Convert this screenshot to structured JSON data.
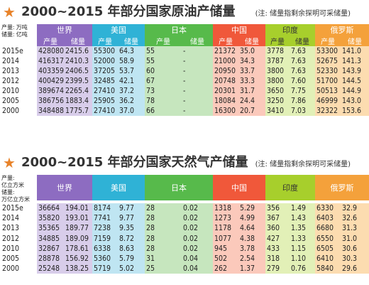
{
  "oil": {
    "title": "2000~2015 年部分国家原油产储量",
    "note": "(注: 储量指剩余探明可采储量)",
    "unit_line1": "产量: 万吨",
    "unit_line2": "储量: 亿吨",
    "countries": [
      "世界",
      "美国",
      "日本",
      "中国",
      "印度",
      "俄罗斯"
    ],
    "sub_prod": "产量",
    "sub_res": "储量",
    "rows": [
      [
        "2015e",
        "428080",
        "2415.6",
        "55300",
        "64.3",
        "55",
        "-",
        "21372",
        "35.0",
        "3778",
        "7.63",
        "53300",
        "141.0"
      ],
      [
        "2014",
        "416317",
        "2410.3",
        "52000",
        "58.9",
        "55",
        "-",
        "21000",
        "34.3",
        "3787",
        "7.63",
        "52675",
        "141.3"
      ],
      [
        "2013",
        "403359",
        "2406.5",
        "37205",
        "53.7",
        "60",
        "-",
        "20950",
        "33.7",
        "3800",
        "7.63",
        "52330",
        "143.9"
      ],
      [
        "2012",
        "400429",
        "2399.5",
        "32485",
        "42.1",
        "67",
        "-",
        "20748",
        "33.3",
        "3800",
        "7.60",
        "51700",
        "144.5"
      ],
      [
        "2010",
        "389674",
        "2265.4",
        "27410",
        "37.2",
        "73",
        "-",
        "20301",
        "31.7",
        "3650",
        "7.75",
        "50513",
        "144.9"
      ],
      [
        "2005",
        "386756",
        "1883.4",
        "25905",
        "36.2",
        "78",
        "-",
        "18084",
        "24.4",
        "3250",
        "7.86",
        "46999",
        "143.0"
      ],
      [
        "2000",
        "348488",
        "1775.7",
        "27410",
        "37.0",
        "66",
        "-",
        "16300",
        "20.7",
        "3410",
        "7.03",
        "32322",
        "153.6"
      ]
    ]
  },
  "gas": {
    "title": "2000~2015 年部分国家天然气产储量",
    "note": "(注: 储量指剩余探明可采储量)",
    "unit_line1": "产量:",
    "unit_line2": "亿立方米",
    "unit_line3": "储量:",
    "unit_line4": "万亿立方米",
    "countries": [
      "世界",
      "美国",
      "日本",
      "中国",
      "印度",
      "俄罗斯"
    ],
    "rows": [
      [
        "2015e",
        "36664",
        "194.01",
        "8174",
        "9.77",
        "28",
        "0.02",
        "1318",
        "5.29",
        "356",
        "1.49",
        "6330",
        "32.9"
      ],
      [
        "2014",
        "35820",
        "193.01",
        "7741",
        "9.77",
        "28",
        "0.02",
        "1273",
        "4.99",
        "367",
        "1.43",
        "6403",
        "32.6"
      ],
      [
        "2013",
        "35365",
        "189.77",
        "7238",
        "9.35",
        "28",
        "0.02",
        "1178",
        "4.64",
        "360",
        "1.35",
        "6680",
        "31.3"
      ],
      [
        "2012",
        "34885",
        "189.09",
        "7159",
        "8.72",
        "28",
        "0.02",
        "1077",
        "4.38",
        "427",
        "1.33",
        "6550",
        "31.0"
      ],
      [
        "2010",
        "32867",
        "178.61",
        "6338",
        "8.63",
        "28",
        "0.02",
        "945",
        "3.78",
        "433",
        "1.15",
        "6505",
        "30.6"
      ],
      [
        "2005",
        "28878",
        "156.92",
        "5360",
        "5.79",
        "31",
        "0.04",
        "502",
        "2.54",
        "318",
        "1.10",
        "6410",
        "30.3"
      ],
      [
        "2000",
        "25248",
        "138.25",
        "5719",
        "5.02",
        "25",
        "0.04",
        "262",
        "1.37",
        "279",
        "0.76",
        "5840",
        "29.6"
      ]
    ]
  },
  "colors": {
    "world": "#8d6cc1",
    "us": "#2fb2d6",
    "jp": "#57ba4b",
    "cn": "#f0583a",
    "in": "#a7cf2c",
    "ru": "#f4a13b"
  }
}
